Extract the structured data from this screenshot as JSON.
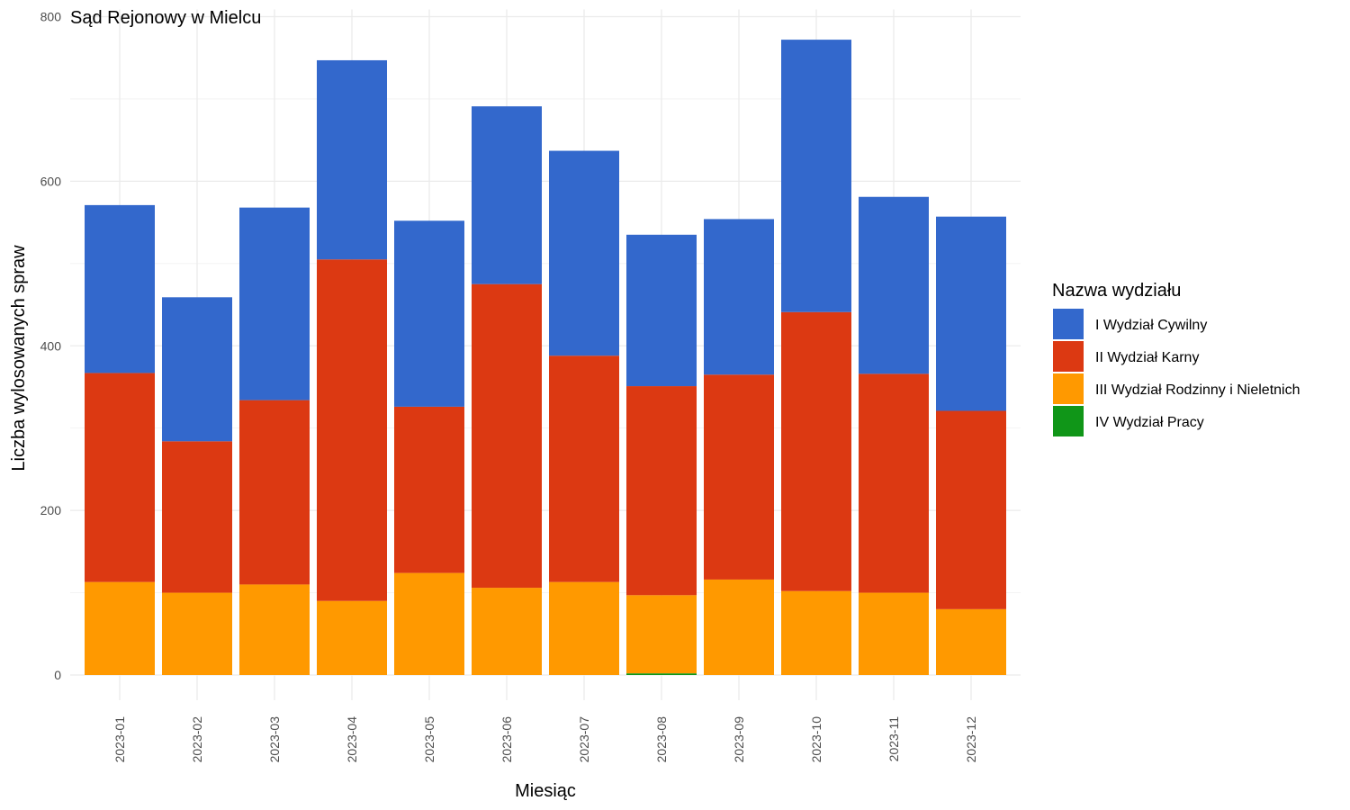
{
  "chart_data": {
    "type": "bar",
    "stacked": true,
    "title": "Sąd Rejonowy w Mielcu",
    "xlabel": "Miesiąc",
    "ylabel": "Liczba wylosowanych spraw",
    "ylim": [
      0,
      800
    ],
    "yticks": [
      0,
      200,
      400,
      600,
      800
    ],
    "grid": true,
    "legend_title": "Nazwa wydziału",
    "legend_position": "right",
    "categories": [
      "2023-01",
      "2023-02",
      "2023-03",
      "2023-04",
      "2023-05",
      "2023-06",
      "2023-07",
      "2023-08",
      "2023-09",
      "2023-10",
      "2023-11",
      "2023-12"
    ],
    "series": [
      {
        "name": "I Wydział Cywilny",
        "color": "#3368CC",
        "values": [
          204,
          175,
          234,
          242,
          226,
          216,
          249,
          184,
          189,
          331,
          215,
          236
        ]
      },
      {
        "name": "II Wydział Karny",
        "color": "#DC3912",
        "values": [
          254,
          184,
          224,
          415,
          202,
          369,
          275,
          254,
          249,
          339,
          266,
          241
        ]
      },
      {
        "name": "III Wydział Rodzinny i Nieletnich",
        "color": "#FF9900",
        "values": [
          113,
          100,
          110,
          90,
          124,
          106,
          113,
          95,
          116,
          102,
          100,
          80
        ]
      },
      {
        "name": "IV Wydział Pracy",
        "color": "#109618",
        "values": [
          0,
          0,
          0,
          0,
          0,
          0,
          0,
          2,
          0,
          0,
          0,
          0
        ]
      }
    ]
  }
}
